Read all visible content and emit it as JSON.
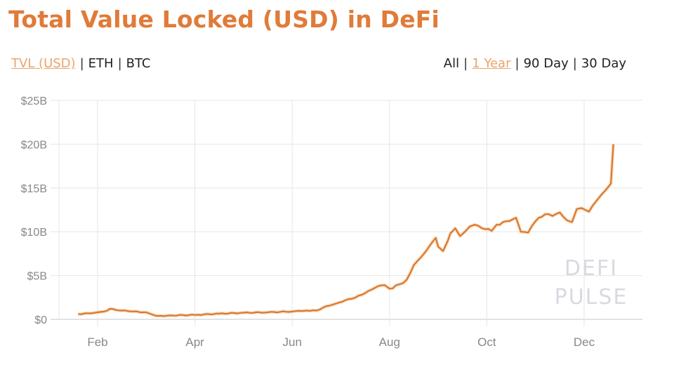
{
  "header": {
    "title": "Total Value Locked (USD) in DeFi"
  },
  "metric_tabs": [
    {
      "label": "TVL (USD)",
      "active": true
    },
    {
      "label": "ETH",
      "active": false
    },
    {
      "label": "BTC",
      "active": false
    }
  ],
  "range_tabs": [
    {
      "label": "All",
      "active": false
    },
    {
      "label": "1 Year",
      "active": true
    },
    {
      "label": "90 Day",
      "active": false
    },
    {
      "label": "30 Day",
      "active": false
    }
  ],
  "watermark": {
    "line1": "DEFI",
    "line2": "PULSE"
  },
  "colors": {
    "accent": "#E07B39",
    "line": "#D9782E",
    "grid": "#e6e6e6",
    "active_tab": "#E9A46A"
  },
  "chart_data": {
    "type": "line",
    "title": "Total Value Locked (USD) in DeFi",
    "xlabel": "",
    "ylabel": "TVL (USD)",
    "ylim": [
      0,
      25
    ],
    "y_unit": "$B",
    "yticks": [
      "$0",
      "$5B",
      "$10B",
      "$15B",
      "$20B",
      "$25B"
    ],
    "ytick_values": [
      0,
      5,
      10,
      15,
      20,
      25
    ],
    "xticks": [
      "Feb",
      "Apr",
      "Jun",
      "Aug",
      "Oct",
      "Dec"
    ],
    "xtick_positions": [
      1,
      3,
      5,
      7,
      9,
      11
    ],
    "xlim": [
      0.6,
      11.6
    ],
    "grid": true,
    "legend": null,
    "series": [
      {
        "name": "TVL (USD)",
        "x": [
          0.6,
          0.8,
          1.0,
          1.2,
          1.25,
          1.5,
          1.7,
          2.0,
          2.1,
          2.2,
          2.3,
          2.5,
          3.0,
          3.5,
          4.0,
          4.5,
          5.0,
          5.2,
          5.3,
          5.5,
          5.7,
          5.9,
          6.1,
          6.3,
          6.5,
          6.7,
          6.9,
          6.95,
          7.0,
          7.2,
          7.35,
          7.5,
          7.65,
          7.75,
          7.85,
          7.95,
          8.0,
          8.1,
          8.2,
          8.25,
          8.35,
          8.45,
          8.55,
          8.65,
          8.75,
          8.9,
          9.1,
          9.2,
          9.4,
          9.6,
          9.7,
          9.85,
          10.0,
          10.2,
          10.35,
          10.5,
          10.65,
          10.75,
          10.85,
          10.95,
          11.1,
          11.25,
          11.35,
          11.45,
          11.55,
          11.6
        ],
        "values": [
          0.6,
          0.7,
          0.8,
          1.0,
          1.2,
          1.0,
          0.9,
          0.8,
          0.6,
          0.4,
          0.4,
          0.45,
          0.5,
          0.65,
          0.75,
          0.8,
          0.9,
          0.95,
          1.0,
          1.0,
          1.5,
          1.8,
          2.2,
          2.5,
          3.0,
          3.6,
          3.9,
          3.7,
          3.5,
          4.0,
          4.5,
          6.2,
          7.1,
          7.8,
          8.6,
          9.3,
          8.3,
          7.8,
          9.0,
          9.8,
          10.4,
          9.5,
          10.0,
          10.6,
          10.8,
          10.4,
          10.1,
          10.8,
          11.2,
          11.6,
          10.0,
          9.9,
          11.2,
          12.0,
          11.8,
          12.2,
          11.3,
          11.1,
          12.6,
          12.7,
          12.3,
          13.5,
          14.2,
          14.8,
          15.5,
          20.0
        ]
      }
    ]
  }
}
